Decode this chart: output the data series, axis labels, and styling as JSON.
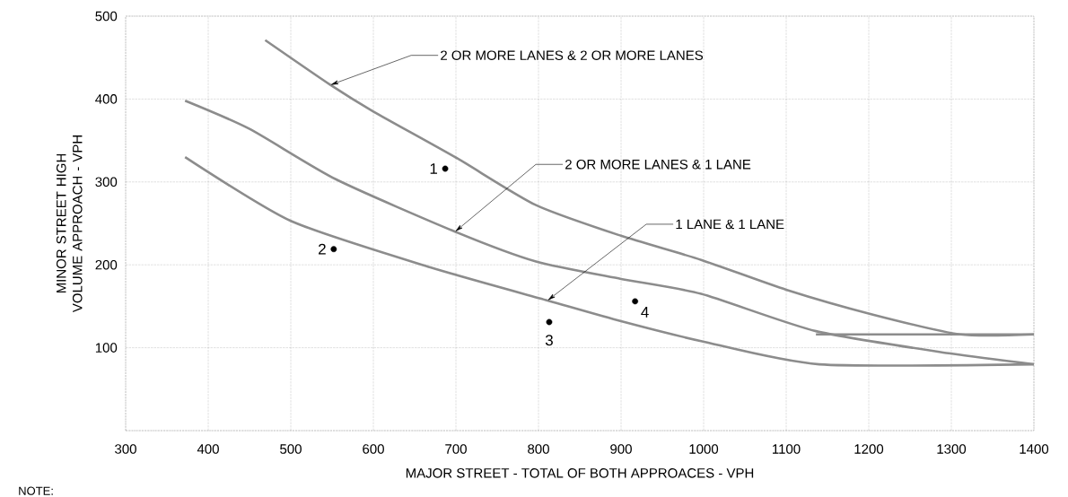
{
  "chart_data": {
    "type": "line",
    "xlabel": "MAJOR STREET  -  TOTAL OF BOTH APPROACES  -  VPH",
    "ylabel": "MINOR STREET HIGH VOLUME APPROACH  -  VPH",
    "xlim": [
      300,
      1400
    ],
    "ylim": [
      0,
      500
    ],
    "xticks": [
      300,
      400,
      500,
      600,
      700,
      800,
      900,
      1000,
      1100,
      1200,
      1300,
      1400
    ],
    "yticks": [
      {
        "value": 0,
        "label": null
      },
      100,
      200,
      300,
      400,
      500
    ],
    "grid": true,
    "line_style": "solid",
    "series": [
      {
        "color": "#8c8c8c",
        "x": [
          469,
          548,
          600,
          699,
          797,
          900,
          997,
          1100,
          1205,
          1311,
          1400
        ],
        "values": [
          471,
          417,
          385,
          330,
          272,
          235,
          206,
          170,
          140,
          116,
          116
        ]
      },
      {
        "color": "#8c8c8c",
        "x": [
          372,
          450,
          555,
          699,
          797,
          900,
          997,
          1136,
          1299,
          1400
        ],
        "values": [
          398,
          364,
          303,
          240,
          204,
          183,
          165,
          120,
          93,
          80
        ]
      },
      {
        "color": "#8c8c8c",
        "x": [
          1136,
          1400
        ],
        "values": [
          116,
          116
        ]
      },
      {
        "color": "#8c8c8c",
        "x": [
          372,
          500,
          669,
          811,
          900,
          997,
          1140,
          1400
        ],
        "values": [
          330,
          253,
          197,
          157,
          132,
          108,
          80,
          80
        ]
      },
      {
        "type": "scatter",
        "color": "#000000",
        "marker": "circle",
        "x": [
          687,
          552,
          813,
          917
        ],
        "values": [
          316,
          219,
          131,
          156
        ]
      }
    ],
    "annotations": [
      {
        "text": "2 OR MORE LANES & 2 OR MORE LANES",
        "x": 548,
        "y": 417
      },
      {
        "text": "2 OR MORE LANES & 1 LANE",
        "x": 699,
        "y": 240
      },
      {
        "text": "1 LANE & 1 LANE",
        "x": 811,
        "y": 157
      },
      {
        "text": "1",
        "x": 687,
        "y": 316
      },
      {
        "text": "2",
        "x": 552,
        "y": 219
      },
      {
        "text": "3",
        "x": 813,
        "y": 131
      },
      {
        "text": "4",
        "x": 917,
        "y": 156
      },
      "NOTE:"
    ]
  }
}
